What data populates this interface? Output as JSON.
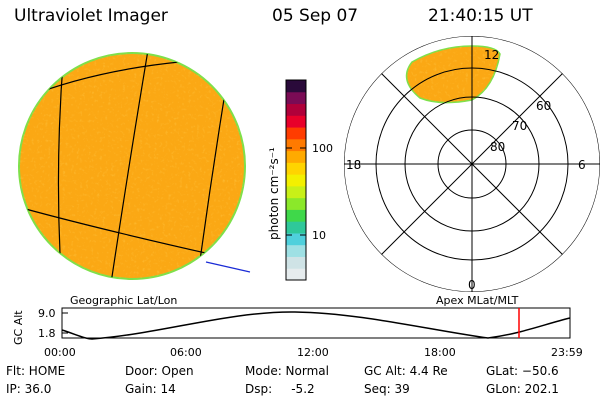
{
  "header": {
    "instrument": "Ultraviolet Imager",
    "date": "05 Sep 07",
    "time": "21:40:15 UT"
  },
  "colorbar": {
    "unit_label": "photon cm⁻²s⁻¹",
    "tick_100": "100",
    "tick_10": "10",
    "colors": [
      "#e6ecee",
      "#cfe3e6",
      "#9ee0e4",
      "#4fd0dc",
      "#2fc89a",
      "#3fd84a",
      "#8be82a",
      "#c8f018",
      "#f3f000",
      "#ffd400",
      "#ffaa00",
      "#ff7a00",
      "#ff3c00",
      "#e8002a",
      "#b0003a",
      "#7a0b55",
      "#2a0a3a"
    ]
  },
  "geo_panel": {
    "caption": "Geographic Lat/Lon",
    "fill_color": "#fba814"
  },
  "polar_panel": {
    "caption": "Apex MLat/MLT",
    "mlt_12": "12",
    "mlt_18": "18",
    "mlt_6": "6",
    "mlt_0": "0",
    "lat_60": "60",
    "lat_70": "70",
    "lat_80": "80"
  },
  "orbit": {
    "axis_title": "GC Alt",
    "y_top": "9.0",
    "y_bottom": "1.8",
    "x_ticks": [
      "00:00",
      "06:00",
      "12:00",
      "18:00",
      "23:59"
    ],
    "marker_color": "#ff0000"
  },
  "status": {
    "flt": "Flt: HOME",
    "ip": "IP: 36.0",
    "door": "Door: Open",
    "gain": "Gain: 14",
    "mode": "Mode: Normal",
    "dsp": "Dsp:     -5.2",
    "gc_alt": "GC Alt: 4.4 Re",
    "seq": "Seq: 39",
    "glat": "GLat: −50.6",
    "glon": "GLon: 202.1"
  }
}
